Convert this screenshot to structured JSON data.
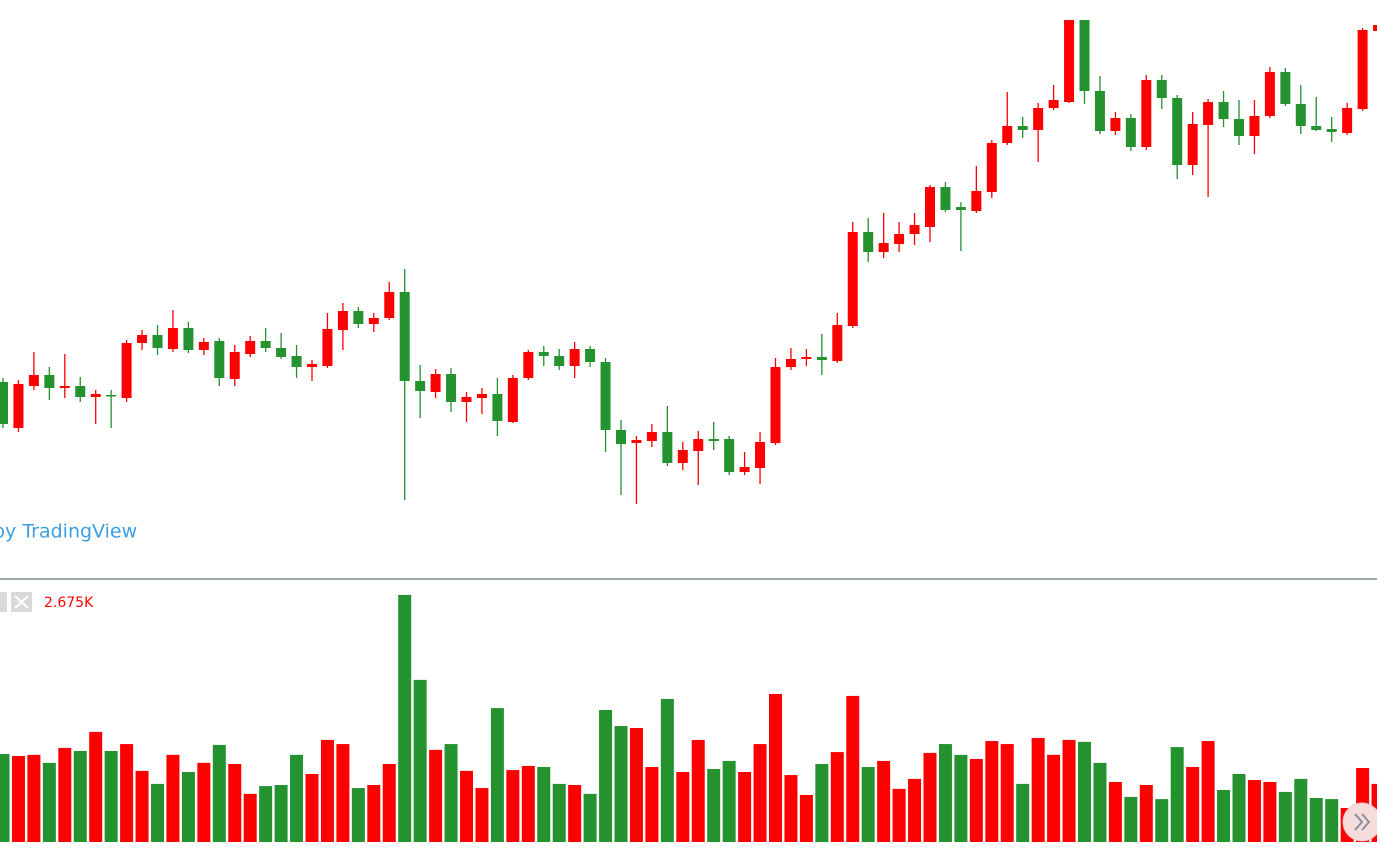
{
  "chart_data": [
    {
      "type": "candlestick",
      "watermark": "by TradingView",
      "ylim": [
        0,
        580
      ],
      "up_color": "#ff0000",
      "down_color": "#23922f",
      "open": [
        198,
        152,
        194,
        205,
        192,
        194,
        183,
        185,
        182,
        237,
        245,
        231,
        252,
        230,
        239,
        201,
        226,
        239,
        232,
        224,
        213,
        214,
        250,
        269,
        256,
        262,
        288,
        199,
        188,
        206,
        178,
        182,
        186,
        158,
        202,
        228,
        224,
        214,
        231,
        218,
        150,
        137,
        139,
        148,
        117,
        129,
        141,
        141,
        108,
        112,
        137,
        213,
        221,
        223,
        219,
        254,
        348,
        328,
        336,
        346,
        353,
        393,
        373,
        369,
        388,
        437,
        454,
        450,
        472,
        478,
        560,
        489,
        449,
        462,
        433,
        500,
        482,
        415,
        455,
        478,
        461,
        444,
        464,
        508,
        476,
        454,
        451,
        447,
        471,
        549
      ],
      "high": [
        202,
        200,
        228,
        213,
        226,
        203,
        190,
        190,
        240,
        250,
        255,
        270,
        258,
        242,
        242,
        235,
        244,
        252,
        247,
        235,
        220,
        267,
        277,
        273,
        267,
        298,
        311,
        215,
        211,
        212,
        188,
        192,
        202,
        205,
        230,
        234,
        231,
        238,
        234,
        222,
        160,
        144,
        156,
        174,
        138,
        149,
        158,
        144,
        128,
        148,
        222,
        232,
        231,
        246,
        267,
        358,
        362,
        367,
        358,
        367,
        395,
        398,
        378,
        414,
        440,
        488,
        463,
        477,
        495,
        560,
        560,
        504,
        468,
        466,
        505,
        505,
        485,
        468,
        481,
        489,
        480,
        480,
        513,
        512,
        495,
        483,
        463,
        477,
        552,
        556
      ],
      "low": [
        152,
        148,
        190,
        180,
        182,
        178,
        156,
        152,
        178,
        230,
        225,
        228,
        227,
        225,
        194,
        194,
        223,
        228,
        221,
        202,
        199,
        212,
        230,
        252,
        248,
        260,
        80,
        162,
        182,
        168,
        158,
        166,
        144,
        157,
        200,
        214,
        210,
        202,
        213,
        128,
        85,
        76,
        133,
        114,
        110,
        95,
        130,
        105,
        105,
        96,
        135,
        210,
        214,
        205,
        217,
        252,
        318,
        322,
        328,
        335,
        338,
        368,
        329,
        367,
        382,
        435,
        442,
        418,
        470,
        477,
        476,
        446,
        445,
        429,
        430,
        471,
        401,
        405,
        383,
        453,
        435,
        426,
        462,
        474,
        446,
        449,
        438,
        445,
        469,
        549
      ],
      "close": [
        156,
        196,
        205,
        192,
        194,
        183,
        186,
        184,
        237,
        245,
        232,
        252,
        230,
        238,
        202,
        228,
        239,
        232,
        223,
        213,
        216,
        251,
        269,
        256,
        262,
        288,
        199,
        189,
        206,
        178,
        183,
        186,
        159,
        202,
        228,
        224,
        214,
        231,
        218,
        150,
        136,
        140,
        148,
        117,
        130,
        141,
        139,
        108,
        113,
        138,
        213,
        221,
        223,
        220,
        255,
        348,
        328,
        337,
        346,
        355,
        393,
        370,
        370,
        389,
        437,
        454,
        450,
        472,
        480,
        560,
        489,
        449,
        462,
        433,
        500,
        482,
        415,
        456,
        478,
        461,
        444,
        464,
        508,
        476,
        454,
        450,
        448,
        472,
        550,
        555
      ]
    },
    {
      "type": "volume",
      "legend_value": "2.675K",
      "ylim": [
        0,
        9470
      ],
      "values": [
        3180,
        3110,
        3150,
        2860,
        3400,
        3290,
        3980,
        3290,
        3540,
        2570,
        2100,
        3150,
        2530,
        2860,
        3510,
        2820,
        1740,
        2020,
        2060,
        3150,
        2460,
        3690,
        3540,
        1950,
        2060,
        2820,
        8930,
        5860,
        3330,
        3540,
        2570,
        1950,
        4840,
        2600,
        2750,
        2710,
        2100,
        2060,
        1740,
        4770,
        4190,
        4120,
        2710,
        5170,
        2530,
        3690,
        2640,
        2930,
        2530,
        3540,
        5350,
        2420,
        1700,
        2820,
        3250,
        5280,
        2710,
        2930,
        1920,
        2280,
        3220,
        3540,
        3150,
        3000,
        3650,
        3540,
        2100,
        3760,
        3150,
        3690,
        3620,
        2860,
        2170,
        1630,
        2060,
        1550,
        3430,
        2710,
        3650,
        1880,
        2460,
        2240,
        2170,
        1810,
        2280,
        1590,
        1550,
        1230,
        2675,
        2100
      ]
    }
  ]
}
